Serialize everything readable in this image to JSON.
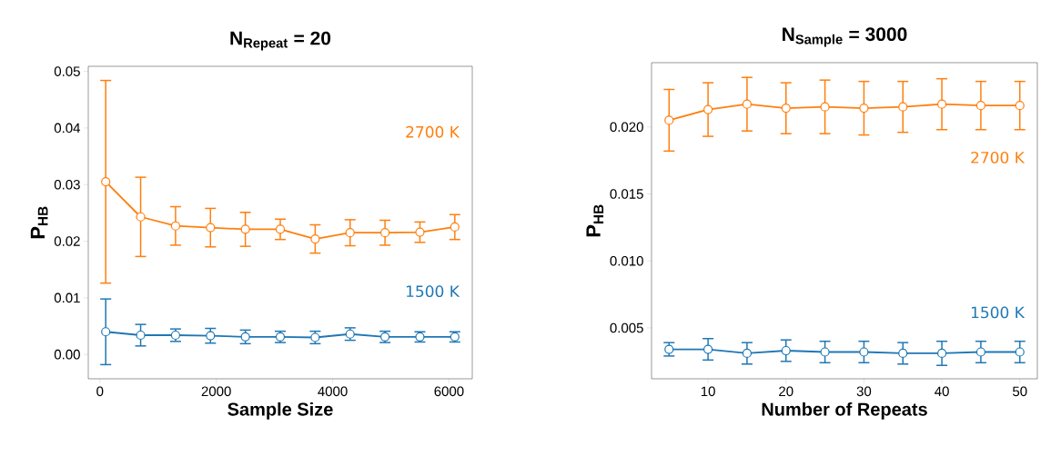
{
  "chart_data": [
    {
      "type": "line",
      "title": "N$_{Repeat}$ = 20",
      "xlabel": "Sample Size",
      "ylabel": "P$_{HB}$",
      "marker": "circle",
      "x": [
        100,
        700,
        1300,
        1900,
        2500,
        3100,
        3700,
        4300,
        4900,
        5500,
        6100
      ],
      "series": [
        {
          "name": "2700 K",
          "color": "#ff7f0e",
          "values": [
            0.0305,
            0.0243,
            0.0227,
            0.0224,
            0.0221,
            0.0221,
            0.0204,
            0.0215,
            0.0215,
            0.0216,
            0.0225
          ],
          "errors": [
            0.0179,
            0.007,
            0.0034,
            0.0034,
            0.003,
            0.0018,
            0.0025,
            0.0023,
            0.0022,
            0.0018,
            0.0022
          ]
        },
        {
          "name": "1500 K",
          "color": "#1f77b4",
          "values": [
            0.004,
            0.0034,
            0.0034,
            0.0033,
            0.0031,
            0.0031,
            0.003,
            0.0036,
            0.0031,
            0.0031,
            0.0031
          ],
          "errors": [
            0.0058,
            0.0019,
            0.0011,
            0.0013,
            0.0012,
            0.001,
            0.0011,
            0.0011,
            0.001,
            0.0009,
            0.0009
          ]
        }
      ],
      "xlim": [
        -200,
        6400
      ],
      "ylim": [
        -0.0043,
        0.0509
      ],
      "xticks": [
        0,
        2000,
        4000,
        6000
      ],
      "yticks": [
        {
          "value": 0,
          "label": "0.00"
        },
        {
          "value": 0.01,
          "label": "0.01"
        },
        {
          "value": 0.02,
          "label": "0.02"
        },
        {
          "value": 0.03,
          "label": "0.03"
        },
        {
          "value": 0.04,
          "label": "0.04"
        },
        {
          "value": 0.05,
          "label": "0.05"
        }
      ]
    },
    {
      "type": "line",
      "title": "N$_{Sample}$ = 3000",
      "xlabel": "Number of Repeats",
      "ylabel": "P$_{HB}$",
      "marker": "circle",
      "x": [
        5,
        10,
        15,
        20,
        25,
        30,
        35,
        40,
        45,
        50
      ],
      "series": [
        {
          "name": "2700 K",
          "color": "#ff7f0e",
          "values": [
            0.0205,
            0.0213,
            0.0217,
            0.0214,
            0.0215,
            0.0214,
            0.0215,
            0.0217,
            0.0216,
            0.0216
          ],
          "errors": [
            0.0023,
            0.002,
            0.002,
            0.0019,
            0.002,
            0.002,
            0.0019,
            0.0019,
            0.0018,
            0.0018
          ]
        },
        {
          "name": "1500 K",
          "color": "#1f77b4",
          "values": [
            0.0034,
            0.0034,
            0.0031,
            0.0033,
            0.0032,
            0.0032,
            0.0031,
            0.0031,
            0.0032,
            0.0032
          ],
          "errors": [
            0.0005,
            0.0008,
            0.0008,
            0.0008,
            0.0008,
            0.0008,
            0.0008,
            0.0009,
            0.0008,
            0.0008
          ]
        }
      ],
      "xlim": [
        2.75,
        52.25
      ],
      "ylim": [
        0.0012,
        0.0248
      ],
      "xticks": [
        10,
        20,
        30,
        40,
        50
      ],
      "yticks": [
        {
          "value": 0.005,
          "label": "0.005"
        },
        {
          "value": 0.01,
          "label": "0.010"
        },
        {
          "value": 0.015,
          "label": "0.015"
        },
        {
          "value": 0.02,
          "label": "0.020"
        }
      ]
    }
  ]
}
